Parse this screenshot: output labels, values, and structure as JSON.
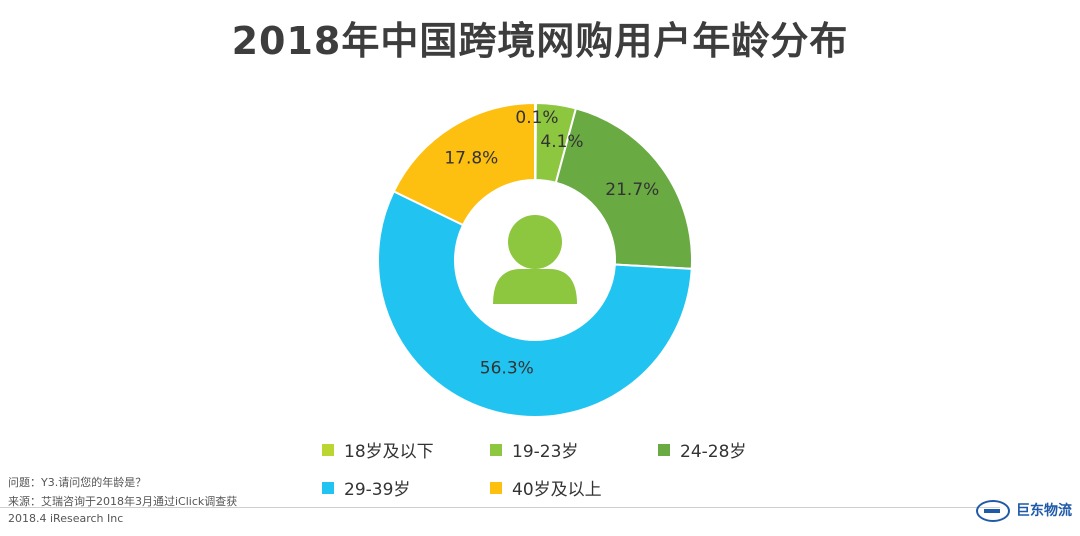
{
  "title": "2018年中国跨境网购用户年龄分布",
  "chart_data": {
    "type": "pie",
    "donut": true,
    "title": "2018年中国跨境网购用户年龄分布",
    "categories": [
      "18岁及以下",
      "19-23岁",
      "24-28岁",
      "29-39岁",
      "40岁及以上"
    ],
    "values": [
      0.1,
      4.1,
      21.7,
      56.3,
      17.8
    ],
    "labels": [
      "0.1%",
      "4.1%",
      "21.7%",
      "56.3%",
      "17.8%"
    ],
    "colors": [
      "#bcd631",
      "#8dc63f",
      "#6aaa43",
      "#21c4f0",
      "#fdbf10"
    ],
    "legend_position": "bottom",
    "center_icon": "user-icon",
    "center_icon_color": "#8dc63f"
  },
  "legend": [
    {
      "label": "18岁及以下",
      "color": "#bcd631"
    },
    {
      "label": "19-23岁",
      "color": "#8dc63f"
    },
    {
      "label": "24-28岁",
      "color": "#6aaa43"
    },
    {
      "label": "29-39岁",
      "color": "#21c4f0"
    },
    {
      "label": "40岁及以上",
      "color": "#fdbf10"
    }
  ],
  "footnotes": {
    "question": "问题：Y3.请问您的年龄是？",
    "source": "来源：艾瑞咨询于2018年3月通过iClick调查获",
    "copyright": "2018.4 iResearch Inc"
  },
  "watermark": {
    "text": "巨东物流",
    "icon": "logo-icon"
  }
}
